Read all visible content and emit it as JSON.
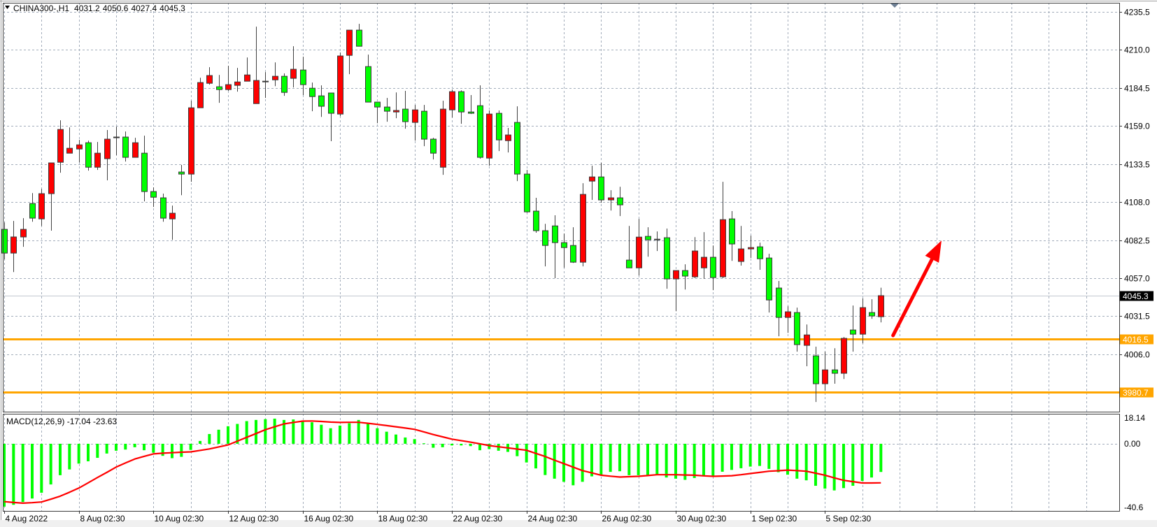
{
  "header": {
    "symbol_timeframe": "CHINA300-,H1",
    "ohlc": [
      "4031.2",
      "4050.6",
      "4027.4",
      "4045.3"
    ],
    "menu_icon": "triangle-down-icon"
  },
  "colors": {
    "bull_candle": "#ff0000",
    "bear_candle": "#00ff00",
    "candle_outline": "#3a3a3a",
    "grid": "#a3adbb",
    "level_line": "#ffa500",
    "current_price_line": "#c0c6cf",
    "macd_histogram": "#00ff00",
    "macd_signal": "#ff0000",
    "arrow": "#ff0000"
  },
  "chart_data": [
    {
      "type": "candlestick",
      "panel": "main",
      "ylim": [
        3967.6,
        4241.4
      ],
      "grid": true,
      "price_axis": {
        "ticks": [
          "4235.5",
          "4210.0",
          "4184.5",
          "4159.0",
          "4133.5",
          "4108.0",
          "4082.5",
          "4057.0",
          "4031.5",
          "4006.0"
        ],
        "current_price": "4045.3"
      },
      "horizontal_levels": [
        "4016.5",
        "3980.7"
      ],
      "arrow": {
        "from": {
          "bar": 96.3,
          "price": 4018.6
        },
        "to": {
          "bar": 101.5,
          "price": 4082.2
        }
      },
      "x_tick_labels": [
        "4 Aug 2022",
        "8 Aug 02:30",
        "10 Aug 02:30",
        "12 Aug 02:30",
        "16 Aug 02:30",
        "18 Aug 02:30",
        "22 Aug 02:30",
        "24 Aug 02:30",
        "26 Aug 02:30",
        "30 Aug 02:30",
        "1 Sep 02:30",
        "5 Sep 02:30"
      ],
      "ohlc_fields": [
        "open",
        "high",
        "low",
        "close"
      ],
      "candles": [
        [
          4089.7,
          4094.4,
          4069.6,
          4073.8
        ],
        [
          4073.8,
          4095.3,
          4061.1,
          4084.6
        ],
        [
          4084.6,
          4097.2,
          4078.0,
          4089.7
        ],
        [
          4107.0,
          4114.0,
          4094.8,
          4097.2
        ],
        [
          4096.7,
          4116.8,
          4092.0,
          4113.6
        ],
        [
          4113.6,
          4134.2,
          4088.8,
          4134.2
        ],
        [
          4134.6,
          4162.7,
          4127.6,
          4156.6
        ],
        [
          4140.7,
          4158.0,
          4140.7,
          4144.0
        ],
        [
          4143.5,
          4149.6,
          4134.6,
          4146.3
        ],
        [
          4147.7,
          4149.1,
          4129.0,
          4131.3
        ],
        [
          4131.3,
          4148.2,
          4129.5,
          4140.7
        ],
        [
          4137.0,
          4156.2,
          4122.5,
          4150.1
        ],
        [
          4151.5,
          4158.5,
          4139.3,
          4151.5
        ],
        [
          4151.5,
          4155.2,
          4135.1,
          4137.9
        ],
        [
          4137.9,
          4151.0,
          4137.9,
          4147.7
        ],
        [
          4140.7,
          4152.4,
          4108.4,
          4115.0
        ],
        [
          4115.0,
          4117.8,
          4104.7,
          4111.2
        ],
        [
          4110.8,
          4113.6,
          4094.8,
          4097.2
        ],
        [
          4096.7,
          4105.6,
          4082.7,
          4100.5
        ],
        [
          4128.1,
          4132.8,
          4112.6,
          4126.7
        ],
        [
          4126.7,
          4175.8,
          4121.5,
          4171.1
        ],
        [
          4171.1,
          4191.2,
          4171.1,
          4188.0
        ],
        [
          4187.5,
          4198.3,
          4186.6,
          4192.7
        ],
        [
          4185.2,
          4193.1,
          4174.4,
          4183.3
        ],
        [
          4183.3,
          4199.2,
          4182.4,
          4186.6
        ],
        [
          4186.1,
          4197.8,
          4181.9,
          4188.4
        ],
        [
          4188.9,
          4204.8,
          4188.9,
          4193.1
        ],
        [
          4173.9,
          4225.4,
          4173.9,
          4189.4
        ],
        [
          4188.9,
          4195.0,
          4177.7,
          4188.9
        ],
        [
          4189.8,
          4201.5,
          4185.6,
          4192.2
        ],
        [
          4192.2,
          4194.1,
          4179.1,
          4181.4
        ],
        [
          4190.8,
          4212.3,
          4184.7,
          4196.9
        ],
        [
          4196.4,
          4205.3,
          4179.6,
          4186.6
        ],
        [
          4184.2,
          4188.0,
          4168.8,
          4178.6
        ],
        [
          4179.1,
          4186.1,
          4165.0,
          4172.1
        ],
        [
          4181.0,
          4181.0,
          4148.7,
          4167.4
        ],
        [
          4166.9,
          4208.1,
          4165.5,
          4205.8
        ],
        [
          4206.2,
          4223.1,
          4193.6,
          4223.1
        ],
        [
          4223.1,
          4227.3,
          4212.3,
          4212.3
        ],
        [
          4198.7,
          4206.7,
          4174.9,
          4174.9
        ],
        [
          4174.9,
          4174.9,
          4160.8,
          4171.6
        ],
        [
          4171.6,
          4177.7,
          4161.8,
          4168.8
        ],
        [
          4168.3,
          4181.4,
          4164.1,
          4169.3
        ],
        [
          4170.2,
          4182.4,
          4157.1,
          4161.8
        ],
        [
          4161.3,
          4173.0,
          4149.1,
          4169.7
        ],
        [
          4168.8,
          4173.0,
          4145.4,
          4150.1
        ],
        [
          4150.1,
          4151.0,
          4136.5,
          4140.7
        ],
        [
          4131.3,
          4175.8,
          4126.2,
          4170.2
        ],
        [
          4169.7,
          4183.3,
          4164.6,
          4181.9
        ],
        [
          4181.9,
          4182.8,
          4160.4,
          4168.3
        ],
        [
          4168.3,
          4179.6,
          4166.9,
          4167.4
        ],
        [
          4172.5,
          4186.1,
          4137.0,
          4137.9
        ],
        [
          4137.4,
          4169.3,
          4132.3,
          4166.9
        ],
        [
          4167.4,
          4169.3,
          4142.1,
          4149.6
        ],
        [
          4149.1,
          4157.6,
          4141.2,
          4152.9
        ],
        [
          4161.3,
          4172.1,
          4122.0,
          4126.7
        ],
        [
          4126.7,
          4129.5,
          4100.9,
          4101.4
        ],
        [
          4101.9,
          4110.8,
          4087.4,
          4088.8
        ],
        [
          4088.8,
          4093.4,
          4064.9,
          4078.9
        ],
        [
          4092.0,
          4099.1,
          4057.0,
          4080.8
        ],
        [
          4080.8,
          4086.9,
          4064.0,
          4077.5
        ],
        [
          4078.9,
          4091.1,
          4067.2,
          4067.7
        ],
        [
          4067.7,
          4120.6,
          4064.9,
          4113.1
        ],
        [
          4122.0,
          4132.3,
          4109.4,
          4124.8
        ],
        [
          4124.8,
          4134.2,
          4107.5,
          4109.4
        ],
        [
          4109.4,
          4115.9,
          4102.3,
          4110.8
        ],
        [
          4110.8,
          4118.2,
          4098.6,
          4106.1
        ],
        [
          4069.1,
          4092.0,
          4063.9,
          4063.9
        ],
        [
          4063.9,
          4096.7,
          4058.8,
          4084.5
        ],
        [
          4085.0,
          4091.1,
          4071.4,
          4082.7
        ],
        [
          4083.1,
          4088.3,
          4075.2,
          4083.1
        ],
        [
          4084.1,
          4090.2,
          4049.9,
          4056.5
        ],
        [
          4056.5,
          4062.1,
          4034.9,
          4062.1
        ],
        [
          4062.1,
          4066.3,
          4049.4,
          4058.4
        ],
        [
          4057.9,
          4084.5,
          4057.0,
          4075.2
        ],
        [
          4063.9,
          4087.8,
          4056.5,
          4071.0
        ],
        [
          4071.0,
          4078.9,
          4049.0,
          4057.4
        ],
        [
          4057.9,
          4121.5,
          4057.0,
          4096.2
        ],
        [
          4096.7,
          4101.9,
          4068.6,
          4079.9
        ],
        [
          4068.2,
          4092.0,
          4065.4,
          4076.6
        ],
        [
          4076.6,
          4085.5,
          4070.5,
          4077.5
        ],
        [
          4078.0,
          4080.8,
          4062.6,
          4070.0
        ],
        [
          4070.5,
          4073.3,
          4034.0,
          4042.4
        ],
        [
          4050.4,
          4055.1,
          4018.1,
          4030.7
        ],
        [
          4030.7,
          4038.2,
          4020.4,
          4034.5
        ],
        [
          4034.0,
          4037.3,
          4007.8,
          4012.5
        ],
        [
          4012.0,
          4026.0,
          3998.0,
          4019.0
        ],
        [
          4005.0,
          4011.1,
          3974.1,
          3986.3
        ],
        [
          3986.3,
          4007.8,
          3981.6,
          3995.6
        ],
        [
          3995.6,
          4010.1,
          3986.3,
          3993.3
        ],
        [
          3993.3,
          4017.6,
          3989.5,
          4016.7
        ],
        [
          4022.3,
          4038.7,
          4007.8,
          4019.5
        ],
        [
          4019.5,
          4043.4,
          4013.4,
          4037.3
        ],
        [
          4034.0,
          4042.9,
          4029.8,
          4031.7
        ],
        [
          4031.2,
          4050.6,
          4027.4,
          4045.3
        ]
      ]
    },
    {
      "type": "bar+line",
      "panel": "indicator",
      "label": "MACD(12,26,9) -17.04 -23.63",
      "ylim": [
        -40.6,
        18.14
      ],
      "axis_labels": [
        "18.14",
        "0.00",
        "-40.6"
      ],
      "histogram": [
        -38.0,
        -36.9,
        -35.2,
        -33.1,
        -29.6,
        -24.6,
        -19.0,
        -15.5,
        -12.0,
        -10.6,
        -8.5,
        -5.9,
        -4.2,
        -3.5,
        -2.1,
        -3.9,
        -5.4,
        -7.3,
        -8.7,
        -7.9,
        -3.7,
        1.7,
        5.9,
        8.5,
        10.6,
        12.0,
        13.7,
        14.4,
        14.9,
        15.2,
        14.4,
        14.7,
        14.1,
        13.0,
        11.5,
        9.4,
        11.0,
        12.4,
        14.4,
        12.0,
        9.4,
        7.3,
        5.6,
        3.8,
        2.8,
        0.3,
        -2.4,
        -2.1,
        -1.0,
        -1.0,
        -1.4,
        -3.9,
        -3.2,
        -4.2,
        -4.9,
        -7.5,
        -11.3,
        -14.9,
        -18.9,
        -21.1,
        -23.0,
        -25.1,
        -23.0,
        -19.7,
        -19.0,
        -17.0,
        -16.6,
        -19.0,
        -19.0,
        -19.0,
        -18.6,
        -20.4,
        -21.1,
        -21.8,
        -20.7,
        -19.7,
        -19.7,
        -16.9,
        -15.8,
        -14.8,
        -13.8,
        -13.4,
        -15.2,
        -17.2,
        -18.7,
        -21.1,
        -22.1,
        -25.4,
        -27.1,
        -28.2,
        -26.8,
        -25.4,
        -22.5,
        -20.4,
        -17.04
      ],
      "signal": [
        -35.0,
        -35.5,
        -35.9,
        -35.6,
        -35.2,
        -33.5,
        -31.7,
        -29.3,
        -26.8,
        -23.6,
        -20.4,
        -17.3,
        -14.1,
        -11.6,
        -9.2,
        -7.6,
        -6.1,
        -5.7,
        -5.4,
        -5.1,
        -4.9,
        -4.0,
        -3.1,
        -1.9,
        -0.7,
        1.6,
        3.9,
        6.2,
        8.5,
        10.3,
        12.0,
        12.9,
        13.7,
        13.8,
        13.5,
        13.1,
        12.9,
        13.0,
        13.0,
        12.4,
        11.7,
        11.0,
        10.3,
        9.5,
        8.7,
        7.2,
        5.6,
        4.2,
        2.8,
        1.9,
        1.0,
        0.0,
        -1.1,
        -1.8,
        -2.5,
        -3.2,
        -3.9,
        -5.8,
        -7.7,
        -9.9,
        -12.0,
        -14.1,
        -16.2,
        -17.6,
        -19.0,
        -19.6,
        -20.1,
        -19.9,
        -19.7,
        -19.2,
        -18.7,
        -18.7,
        -18.7,
        -18.9,
        -19.0,
        -19.4,
        -19.7,
        -19.5,
        -19.3,
        -18.7,
        -18.0,
        -17.3,
        -16.6,
        -16.3,
        -15.9,
        -16.2,
        -16.6,
        -17.8,
        -19.0,
        -20.6,
        -22.1,
        -22.9,
        -23.7,
        -23.7,
        -23.63
      ]
    }
  ]
}
